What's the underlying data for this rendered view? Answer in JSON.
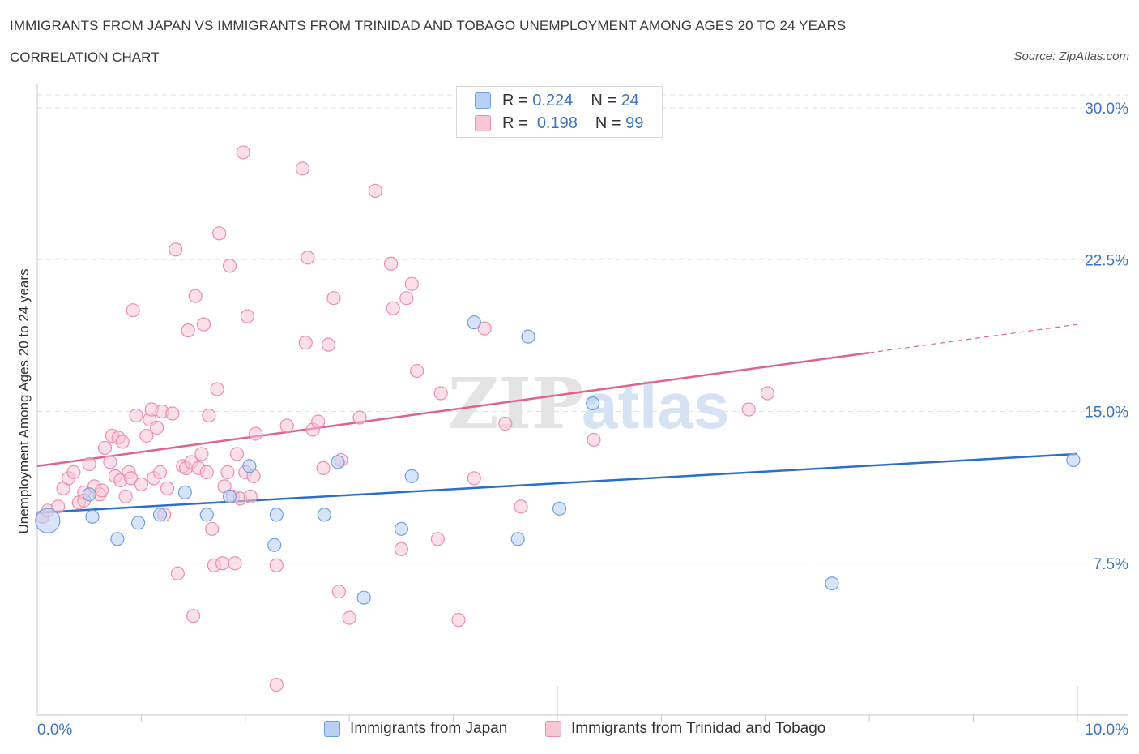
{
  "header": {
    "title": "IMMIGRANTS FROM JAPAN VS IMMIGRANTS FROM TRINIDAD AND TOBAGO UNEMPLOYMENT AMONG AGES 20 TO 24 YEARS",
    "subtitle": "CORRELATION CHART",
    "source": "Source: ZipAtlas.com"
  },
  "legend": {
    "japan": {
      "r_label": "R =",
      "r_value": "0.224",
      "n_label": "N =",
      "n_value": "24"
    },
    "trinidad": {
      "r_label": "R =",
      "r_value": "0.198",
      "n_label": "N =",
      "n_value": "99"
    }
  },
  "bottom_legend": {
    "japan": "Immigrants from Japan",
    "trinidad": "Immigrants from Trinidad and Tobago"
  },
  "colors": {
    "japan_fill": "#b8d0f3",
    "japan_stroke": "#6f9fe0",
    "japan_line": "#2a6fcb",
    "trinidad_fill": "#f8c7d6",
    "trinidad_stroke": "#ea8fae",
    "trinidad_line": "#e0628e",
    "tick_label": "#3b73c4",
    "grid": "#e2e2e2"
  },
  "watermark": {
    "zip": "ZIP",
    "atlas": "atlas"
  },
  "chart_data": {
    "type": "scatter",
    "title": "IMMIGRANTS FROM JAPAN VS IMMIGRANTS FROM TRINIDAD AND TOBAGO UNEMPLOYMENT AMONG AGES 20 TO 24 YEARS",
    "xlabel": "",
    "ylabel": "Unemployment Among Ages 20 to 24 years",
    "xlim": [
      0,
      10
    ],
    "ylim": [
      0,
      30
    ],
    "x_tick_labels": [
      "0.0%",
      "10.0%"
    ],
    "y_ticks": [
      {
        "value": 7.5,
        "label": "7.5%"
      },
      {
        "value": 15,
        "label": "15.0%"
      },
      {
        "value": 22.5,
        "label": "22.5%"
      },
      {
        "value": 30,
        "label": "30.0%"
      }
    ],
    "series": [
      {
        "name": "Immigrants from Japan",
        "trend": {
          "x0": 0,
          "y0": 10.0,
          "x1": 10,
          "y1": 12.9,
          "dashed_from": null
        },
        "points": [
          [
            0.1,
            9.6,
            1
          ],
          [
            0.5,
            10.9,
            0
          ],
          [
            0.53,
            9.8,
            0
          ],
          [
            0.77,
            8.7,
            0
          ],
          [
            0.97,
            9.5,
            0
          ],
          [
            1.18,
            9.9,
            0
          ],
          [
            1.42,
            11.0,
            0
          ],
          [
            1.63,
            9.9,
            0
          ],
          [
            1.85,
            10.8,
            0
          ],
          [
            2.04,
            12.3,
            0
          ],
          [
            2.28,
            8.4,
            0
          ],
          [
            2.3,
            9.9,
            0
          ],
          [
            2.76,
            9.9,
            0
          ],
          [
            2.89,
            12.5,
            0
          ],
          [
            3.14,
            5.8,
            0
          ],
          [
            3.5,
            9.2,
            0
          ],
          [
            3.6,
            11.8,
            0
          ],
          [
            4.2,
            19.4,
            0
          ],
          [
            4.62,
            8.7,
            0
          ],
          [
            4.72,
            18.7,
            0
          ],
          [
            5.02,
            10.2,
            0
          ],
          [
            5.34,
            15.4,
            0
          ],
          [
            7.64,
            6.5,
            0
          ],
          [
            9.96,
            12.6,
            0
          ]
        ]
      },
      {
        "name": "Immigrants from Trinidad and Tobago",
        "trend": {
          "x0": 0,
          "y0": 12.3,
          "x1": 10,
          "y1": 19.3,
          "dashed_from": 8.0
        },
        "points": [
          [
            0.05,
            9.8,
            0
          ],
          [
            0.1,
            10.1,
            0
          ],
          [
            0.2,
            10.3,
            0
          ],
          [
            0.25,
            11.2,
            0
          ],
          [
            0.3,
            11.7,
            0
          ],
          [
            0.35,
            12.0,
            0
          ],
          [
            0.4,
            10.5,
            0
          ],
          [
            0.45,
            11.0,
            0
          ],
          [
            0.5,
            12.4,
            0
          ],
          [
            0.55,
            11.3,
            0
          ],
          [
            0.6,
            10.9,
            0
          ],
          [
            0.62,
            11.1,
            0
          ],
          [
            0.65,
            13.2,
            0
          ],
          [
            0.7,
            12.5,
            0
          ],
          [
            0.72,
            13.8,
            0
          ],
          [
            0.75,
            11.8,
            0
          ],
          [
            0.78,
            13.7,
            0
          ],
          [
            0.8,
            11.6,
            0
          ],
          [
            0.82,
            13.5,
            0
          ],
          [
            0.85,
            10.8,
            0
          ],
          [
            0.88,
            12.0,
            0
          ],
          [
            0.9,
            11.7,
            0
          ],
          [
            0.92,
            20.0,
            0
          ],
          [
            0.95,
            14.8,
            0
          ],
          [
            1.0,
            11.4,
            0
          ],
          [
            1.05,
            13.8,
            0
          ],
          [
            1.08,
            14.6,
            0
          ],
          [
            1.1,
            15.1,
            0
          ],
          [
            1.12,
            11.7,
            0
          ],
          [
            1.15,
            14.2,
            0
          ],
          [
            1.18,
            12.0,
            0
          ],
          [
            1.2,
            15.0,
            0
          ],
          [
            1.22,
            9.9,
            0
          ],
          [
            1.25,
            11.2,
            0
          ],
          [
            1.3,
            14.9,
            0
          ],
          [
            1.33,
            23.0,
            0
          ],
          [
            1.35,
            7.0,
            0
          ],
          [
            1.4,
            12.3,
            0
          ],
          [
            1.43,
            12.2,
            0
          ],
          [
            1.45,
            19.0,
            0
          ],
          [
            1.48,
            12.5,
            0
          ],
          [
            1.5,
            4.9,
            0
          ],
          [
            1.52,
            20.7,
            0
          ],
          [
            1.55,
            12.2,
            0
          ],
          [
            1.58,
            12.9,
            0
          ],
          [
            1.6,
            19.3,
            0
          ],
          [
            1.63,
            12.0,
            0
          ],
          [
            1.65,
            14.8,
            0
          ],
          [
            1.68,
            9.2,
            0
          ],
          [
            1.7,
            7.4,
            0
          ],
          [
            1.73,
            16.1,
            0
          ],
          [
            1.75,
            23.8,
            0
          ],
          [
            1.78,
            7.5,
            0
          ],
          [
            1.8,
            11.3,
            0
          ],
          [
            1.83,
            12.0,
            0
          ],
          [
            1.85,
            22.2,
            0
          ],
          [
            1.88,
            10.8,
            0
          ],
          [
            1.9,
            7.5,
            0
          ],
          [
            1.92,
            12.9,
            0
          ],
          [
            1.95,
            10.7,
            0
          ],
          [
            1.98,
            27.8,
            0
          ],
          [
            2.0,
            12.0,
            0
          ],
          [
            2.02,
            19.7,
            0
          ],
          [
            2.05,
            10.8,
            0
          ],
          [
            2.08,
            11.8,
            0
          ],
          [
            2.1,
            13.9,
            0
          ],
          [
            2.3,
            7.4,
            0
          ],
          [
            2.3,
            1.5,
            0
          ],
          [
            2.4,
            14.3,
            0
          ],
          [
            2.55,
            27.0,
            0
          ],
          [
            2.58,
            18.4,
            0
          ],
          [
            2.6,
            22.6,
            0
          ],
          [
            2.65,
            14.1,
            0
          ],
          [
            2.7,
            14.5,
            0
          ],
          [
            2.75,
            12.2,
            0
          ],
          [
            2.8,
            18.3,
            0
          ],
          [
            2.85,
            20.6,
            0
          ],
          [
            2.9,
            6.1,
            0
          ],
          [
            2.92,
            12.6,
            0
          ],
          [
            3.0,
            4.8,
            0
          ],
          [
            3.1,
            14.7,
            0
          ],
          [
            3.25,
            25.9,
            0
          ],
          [
            3.4,
            22.3,
            0
          ],
          [
            3.42,
            20.1,
            0
          ],
          [
            3.5,
            8.2,
            0
          ],
          [
            3.55,
            20.6,
            0
          ],
          [
            3.6,
            21.3,
            0
          ],
          [
            3.65,
            17.0,
            0
          ],
          [
            3.85,
            8.7,
            0
          ],
          [
            3.88,
            15.9,
            0
          ],
          [
            4.05,
            4.7,
            0
          ],
          [
            4.2,
            11.7,
            0
          ],
          [
            4.3,
            19.1,
            0
          ],
          [
            4.5,
            14.4,
            0
          ],
          [
            4.65,
            10.3,
            0
          ],
          [
            5.35,
            13.6,
            0
          ],
          [
            6.84,
            15.1,
            0
          ],
          [
            7.02,
            15.9,
            0
          ],
          [
            0.45,
            10.6,
            0
          ]
        ]
      }
    ]
  }
}
